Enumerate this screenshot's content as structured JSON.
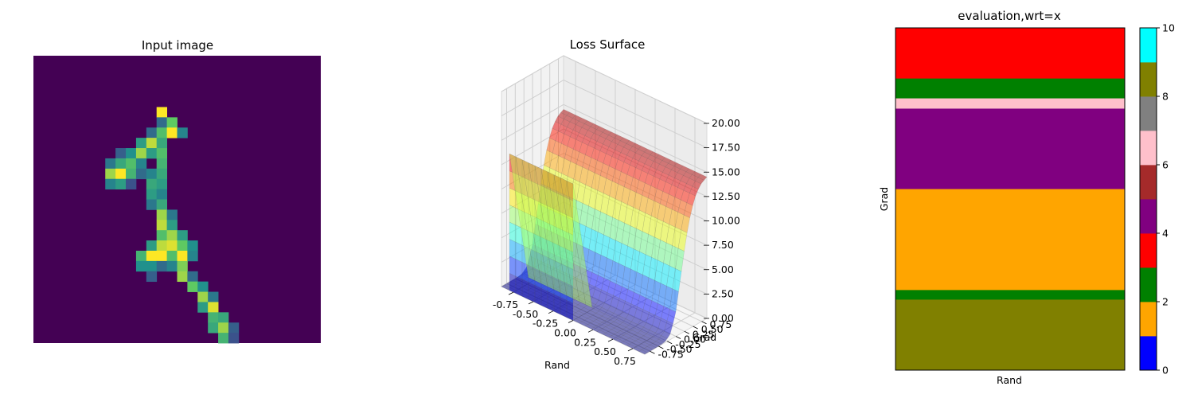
{
  "chart_data": [
    {
      "type": "heatmap",
      "title": "Input image",
      "colormap": "viridis",
      "grid_size": [
        28,
        28
      ],
      "axes_visible": false,
      "cells": [
        [
          5,
          12,
          1.0
        ],
        [
          6,
          12,
          0.35
        ],
        [
          6,
          13,
          0.75
        ],
        [
          7,
          11,
          0.35
        ],
        [
          7,
          12,
          0.7
        ],
        [
          7,
          13,
          1.0
        ],
        [
          7,
          14,
          0.45
        ],
        [
          8,
          10,
          0.55
        ],
        [
          8,
          11,
          0.9
        ],
        [
          8,
          12,
          0.6
        ],
        [
          9,
          8,
          0.3
        ],
        [
          9,
          9,
          0.5
        ],
        [
          9,
          10,
          0.85
        ],
        [
          9,
          11,
          0.55
        ],
        [
          9,
          12,
          0.7
        ],
        [
          10,
          7,
          0.4
        ],
        [
          10,
          8,
          0.6
        ],
        [
          10,
          9,
          0.7
        ],
        [
          10,
          10,
          0.45
        ],
        [
          10,
          12,
          0.65
        ],
        [
          11,
          7,
          0.85
        ],
        [
          11,
          8,
          1.0
        ],
        [
          11,
          9,
          0.65
        ],
        [
          11,
          10,
          0.35
        ],
        [
          11,
          11,
          0.45
        ],
        [
          11,
          12,
          0.6
        ],
        [
          12,
          7,
          0.45
        ],
        [
          12,
          8,
          0.55
        ],
        [
          12,
          9,
          0.25
        ],
        [
          12,
          11,
          0.6
        ],
        [
          12,
          12,
          0.55
        ],
        [
          13,
          11,
          0.55
        ],
        [
          13,
          12,
          0.45
        ],
        [
          14,
          11,
          0.4
        ],
        [
          14,
          12,
          0.6
        ],
        [
          15,
          12,
          0.85
        ],
        [
          15,
          13,
          0.4
        ],
        [
          16,
          12,
          0.9
        ],
        [
          16,
          13,
          0.55
        ],
        [
          17,
          12,
          0.7
        ],
        [
          17,
          13,
          0.85
        ],
        [
          17,
          14,
          0.55
        ],
        [
          18,
          11,
          0.55
        ],
        [
          18,
          12,
          0.9
        ],
        [
          18,
          13,
          0.95
        ],
        [
          18,
          14,
          0.75
        ],
        [
          18,
          15,
          0.5
        ],
        [
          19,
          10,
          0.65
        ],
        [
          19,
          11,
          1.0
        ],
        [
          19,
          12,
          1.0
        ],
        [
          19,
          13,
          0.7
        ],
        [
          19,
          14,
          1.0
        ],
        [
          19,
          15,
          0.45
        ],
        [
          20,
          10,
          0.5
        ],
        [
          20,
          11,
          0.5
        ],
        [
          20,
          12,
          0.35
        ],
        [
          20,
          13,
          0.45
        ],
        [
          20,
          14,
          0.8
        ],
        [
          21,
          11,
          0.3
        ],
        [
          21,
          14,
          0.85
        ],
        [
          21,
          15,
          0.35
        ],
        [
          22,
          15,
          0.75
        ],
        [
          22,
          16,
          0.5
        ],
        [
          23,
          16,
          0.85
        ],
        [
          23,
          17,
          0.4
        ],
        [
          24,
          16,
          0.55
        ],
        [
          24,
          17,
          0.95
        ],
        [
          25,
          17,
          0.65
        ],
        [
          25,
          18,
          0.6
        ],
        [
          26,
          17,
          0.6
        ],
        [
          26,
          18,
          0.85
        ],
        [
          26,
          19,
          0.3
        ],
        [
          27,
          18,
          0.65
        ],
        [
          27,
          19,
          0.25
        ]
      ]
    },
    {
      "type": "surface",
      "title": "Loss Surface",
      "xlabel": "Rand",
      "ylabel": "Grad",
      "x_ticks": [
        "-0.75",
        "-0.50",
        "-0.25",
        "0.00",
        "0.25",
        "0.50",
        "0.75"
      ],
      "y_ticks": [
        "-0.75",
        "-0.50",
        "-0.25",
        "0.00",
        "0.25",
        "0.50",
        "0.75"
      ],
      "z_ticks": [
        "0.00",
        "2.50",
        "5.00",
        "7.50",
        "10.00",
        "12.50",
        "15.00",
        "17.50",
        "20.00"
      ],
      "xlim": [
        -0.9,
        0.9
      ],
      "ylim": [
        -0.9,
        0.9
      ],
      "zlim": [
        0,
        20
      ],
      "colormap": "jet",
      "alpha": 0.5,
      "surface_profile": {
        "axis": "Grad",
        "grad": [
          -0.9,
          -0.5,
          -0.45,
          -0.3,
          -0.15,
          0.0,
          0.15,
          0.3,
          0.45,
          0.6,
          0.75,
          0.9
        ],
        "loss": [
          0.0,
          0.0,
          0.0,
          0.1,
          0.6,
          2.5,
          6.0,
          9.5,
          12.0,
          13.5,
          14.2,
          14.5
        ]
      },
      "near_wall": {
        "rand": [
          -0.8,
          0.0
        ],
        "loss_top": 14.0
      }
    },
    {
      "type": "heatmap",
      "title": "evaluation,wrt=x",
      "xlabel": "Rand",
      "ylabel": "Grad",
      "rows_top_to_bottom": [
        {
          "class": 3,
          "fraction": 0.148
        },
        {
          "class": 2,
          "fraction": 0.058
        },
        {
          "class": 6,
          "fraction": 0.03
        },
        {
          "class": 4,
          "fraction": 0.235
        },
        {
          "class": 1,
          "fraction": 0.295
        },
        {
          "class": 2,
          "fraction": 0.028
        },
        {
          "class": 8,
          "fraction": 0.206
        }
      ],
      "colorbar": {
        "ticks": [
          "0",
          "2",
          "4",
          "6",
          "8",
          "10"
        ],
        "range": [
          0,
          10
        ],
        "colors": [
          "#0000ff",
          "#ffa500",
          "#008000",
          "#ff0000",
          "#800080",
          "#a52a2a",
          "#ffc0cb",
          "#808080",
          "#808000",
          "#00ffff"
        ]
      }
    }
  ]
}
